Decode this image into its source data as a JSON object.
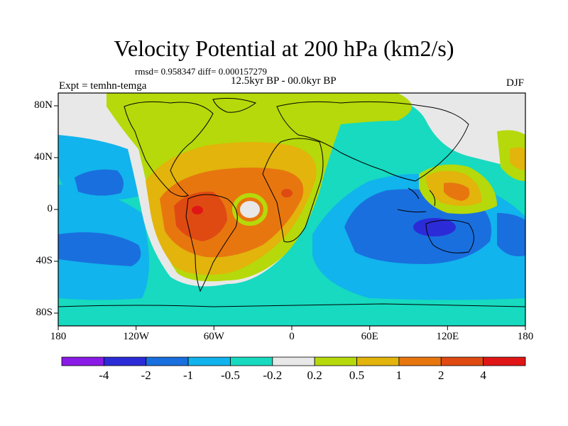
{
  "title": "Velocity Potential at 200 hPa (km2/s)",
  "stats": "rmsd= 0.958347 diff= 0.000157279",
  "period": "12.5kyr BP - 00.0kyr BP",
  "experiment": "Expt = temhn-temga",
  "season": "DJF",
  "lat_ticks": [
    "80N",
    "40N",
    "0",
    "40S",
    "80S"
  ],
  "lon_ticks": [
    "180",
    "120W",
    "60W",
    "0",
    "60E",
    "120E",
    "180"
  ],
  "colorbar": {
    "labels": [
      "-4",
      "-2",
      "-1",
      "-0.5",
      "-0.2",
      "0.2",
      "0.5",
      "1",
      "2",
      "4"
    ],
    "colors": [
      "#8a1be6",
      "#2b2bd8",
      "#1a6fde",
      "#11b4ec",
      "#17dac0",
      "#e8e8e8",
      "#b5d90a",
      "#e2b40c",
      "#e8760f",
      "#df4a12",
      "#e01616"
    ]
  },
  "palette": {
    "deep_blue": "#2b2bd8",
    "blue": "#1a6fde",
    "light_blue": "#11b4ec",
    "teal": "#17dac0",
    "neutral": "#e8e8e8",
    "yellow_green": "#b5d90a",
    "orange": "#e2b40c",
    "dark_orange": "#e8760f",
    "red_orange": "#df4a12",
    "red": "#e01616"
  }
}
